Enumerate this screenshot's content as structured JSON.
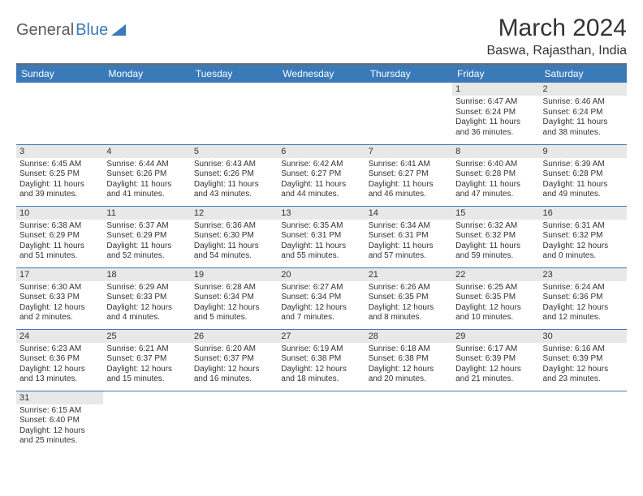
{
  "brand": {
    "part1": "General",
    "part2": "Blue"
  },
  "title": "March 2024",
  "location": "Baswa, Rajasthan, India",
  "colors": {
    "header_bg": "#3a7ab8",
    "daynum_bg": "#e8e8e8",
    "row_border": "#3a7ab8",
    "top_border": "#6a6a6a",
    "text": "#333333",
    "brand_gray": "#5a5a5a",
    "brand_blue": "#3a7ab8",
    "background": "#ffffff"
  },
  "day_headers": [
    "Sunday",
    "Monday",
    "Tuesday",
    "Wednesday",
    "Thursday",
    "Friday",
    "Saturday"
  ],
  "weeks": [
    [
      null,
      null,
      null,
      null,
      null,
      {
        "n": "1",
        "sr": "Sunrise: 6:47 AM",
        "ss": "Sunset: 6:24 PM",
        "dl1": "Daylight: 11 hours",
        "dl2": "and 36 minutes."
      },
      {
        "n": "2",
        "sr": "Sunrise: 6:46 AM",
        "ss": "Sunset: 6:24 PM",
        "dl1": "Daylight: 11 hours",
        "dl2": "and 38 minutes."
      }
    ],
    [
      {
        "n": "3",
        "sr": "Sunrise: 6:45 AM",
        "ss": "Sunset: 6:25 PM",
        "dl1": "Daylight: 11 hours",
        "dl2": "and 39 minutes."
      },
      {
        "n": "4",
        "sr": "Sunrise: 6:44 AM",
        "ss": "Sunset: 6:26 PM",
        "dl1": "Daylight: 11 hours",
        "dl2": "and 41 minutes."
      },
      {
        "n": "5",
        "sr": "Sunrise: 6:43 AM",
        "ss": "Sunset: 6:26 PM",
        "dl1": "Daylight: 11 hours",
        "dl2": "and 43 minutes."
      },
      {
        "n": "6",
        "sr": "Sunrise: 6:42 AM",
        "ss": "Sunset: 6:27 PM",
        "dl1": "Daylight: 11 hours",
        "dl2": "and 44 minutes."
      },
      {
        "n": "7",
        "sr": "Sunrise: 6:41 AM",
        "ss": "Sunset: 6:27 PM",
        "dl1": "Daylight: 11 hours",
        "dl2": "and 46 minutes."
      },
      {
        "n": "8",
        "sr": "Sunrise: 6:40 AM",
        "ss": "Sunset: 6:28 PM",
        "dl1": "Daylight: 11 hours",
        "dl2": "and 47 minutes."
      },
      {
        "n": "9",
        "sr": "Sunrise: 6:39 AM",
        "ss": "Sunset: 6:28 PM",
        "dl1": "Daylight: 11 hours",
        "dl2": "and 49 minutes."
      }
    ],
    [
      {
        "n": "10",
        "sr": "Sunrise: 6:38 AM",
        "ss": "Sunset: 6:29 PM",
        "dl1": "Daylight: 11 hours",
        "dl2": "and 51 minutes."
      },
      {
        "n": "11",
        "sr": "Sunrise: 6:37 AM",
        "ss": "Sunset: 6:29 PM",
        "dl1": "Daylight: 11 hours",
        "dl2": "and 52 minutes."
      },
      {
        "n": "12",
        "sr": "Sunrise: 6:36 AM",
        "ss": "Sunset: 6:30 PM",
        "dl1": "Daylight: 11 hours",
        "dl2": "and 54 minutes."
      },
      {
        "n": "13",
        "sr": "Sunrise: 6:35 AM",
        "ss": "Sunset: 6:31 PM",
        "dl1": "Daylight: 11 hours",
        "dl2": "and 55 minutes."
      },
      {
        "n": "14",
        "sr": "Sunrise: 6:34 AM",
        "ss": "Sunset: 6:31 PM",
        "dl1": "Daylight: 11 hours",
        "dl2": "and 57 minutes."
      },
      {
        "n": "15",
        "sr": "Sunrise: 6:32 AM",
        "ss": "Sunset: 6:32 PM",
        "dl1": "Daylight: 11 hours",
        "dl2": "and 59 minutes."
      },
      {
        "n": "16",
        "sr": "Sunrise: 6:31 AM",
        "ss": "Sunset: 6:32 PM",
        "dl1": "Daylight: 12 hours",
        "dl2": "and 0 minutes."
      }
    ],
    [
      {
        "n": "17",
        "sr": "Sunrise: 6:30 AM",
        "ss": "Sunset: 6:33 PM",
        "dl1": "Daylight: 12 hours",
        "dl2": "and 2 minutes."
      },
      {
        "n": "18",
        "sr": "Sunrise: 6:29 AM",
        "ss": "Sunset: 6:33 PM",
        "dl1": "Daylight: 12 hours",
        "dl2": "and 4 minutes."
      },
      {
        "n": "19",
        "sr": "Sunrise: 6:28 AM",
        "ss": "Sunset: 6:34 PM",
        "dl1": "Daylight: 12 hours",
        "dl2": "and 5 minutes."
      },
      {
        "n": "20",
        "sr": "Sunrise: 6:27 AM",
        "ss": "Sunset: 6:34 PM",
        "dl1": "Daylight: 12 hours",
        "dl2": "and 7 minutes."
      },
      {
        "n": "21",
        "sr": "Sunrise: 6:26 AM",
        "ss": "Sunset: 6:35 PM",
        "dl1": "Daylight: 12 hours",
        "dl2": "and 8 minutes."
      },
      {
        "n": "22",
        "sr": "Sunrise: 6:25 AM",
        "ss": "Sunset: 6:35 PM",
        "dl1": "Daylight: 12 hours",
        "dl2": "and 10 minutes."
      },
      {
        "n": "23",
        "sr": "Sunrise: 6:24 AM",
        "ss": "Sunset: 6:36 PM",
        "dl1": "Daylight: 12 hours",
        "dl2": "and 12 minutes."
      }
    ],
    [
      {
        "n": "24",
        "sr": "Sunrise: 6:23 AM",
        "ss": "Sunset: 6:36 PM",
        "dl1": "Daylight: 12 hours",
        "dl2": "and 13 minutes."
      },
      {
        "n": "25",
        "sr": "Sunrise: 6:21 AM",
        "ss": "Sunset: 6:37 PM",
        "dl1": "Daylight: 12 hours",
        "dl2": "and 15 minutes."
      },
      {
        "n": "26",
        "sr": "Sunrise: 6:20 AM",
        "ss": "Sunset: 6:37 PM",
        "dl1": "Daylight: 12 hours",
        "dl2": "and 16 minutes."
      },
      {
        "n": "27",
        "sr": "Sunrise: 6:19 AM",
        "ss": "Sunset: 6:38 PM",
        "dl1": "Daylight: 12 hours",
        "dl2": "and 18 minutes."
      },
      {
        "n": "28",
        "sr": "Sunrise: 6:18 AM",
        "ss": "Sunset: 6:38 PM",
        "dl1": "Daylight: 12 hours",
        "dl2": "and 20 minutes."
      },
      {
        "n": "29",
        "sr": "Sunrise: 6:17 AM",
        "ss": "Sunset: 6:39 PM",
        "dl1": "Daylight: 12 hours",
        "dl2": "and 21 minutes."
      },
      {
        "n": "30",
        "sr": "Sunrise: 6:16 AM",
        "ss": "Sunset: 6:39 PM",
        "dl1": "Daylight: 12 hours",
        "dl2": "and 23 minutes."
      }
    ],
    [
      {
        "n": "31",
        "sr": "Sunrise: 6:15 AM",
        "ss": "Sunset: 6:40 PM",
        "dl1": "Daylight: 12 hours",
        "dl2": "and 25 minutes."
      },
      null,
      null,
      null,
      null,
      null,
      null
    ]
  ]
}
